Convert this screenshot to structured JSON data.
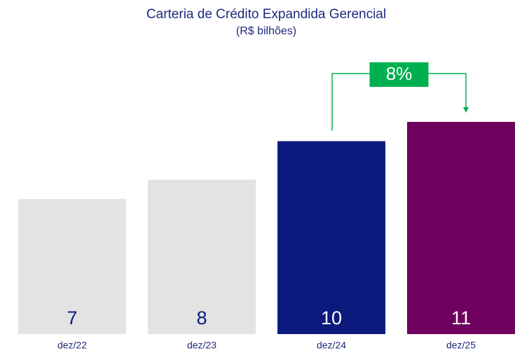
{
  "chart_data": {
    "type": "bar",
    "title": "Carteria de Crédito Expandida Gerencial",
    "subtitle": "(R$ bilhões)",
    "categories": [
      "dez/22",
      "dez/23",
      "dez/24",
      "dez/25"
    ],
    "values": [
      7,
      8,
      10,
      11
    ],
    "colors": [
      "#e3e3e3",
      "#e3e3e3",
      "#0c1a7e",
      "#6e005e"
    ],
    "label_colors": [
      "#0c1a7e",
      "#0c1a7e",
      "#ffffff",
      "#ffffff"
    ],
    "annotation": "8%",
    "annotation_color": "#00b050"
  }
}
